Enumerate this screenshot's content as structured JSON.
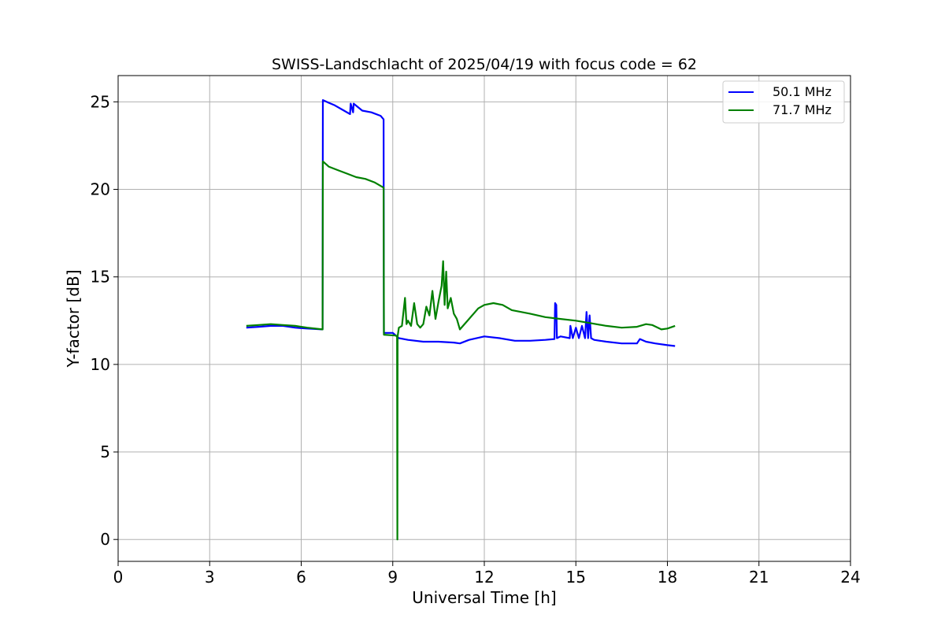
{
  "chart_data": {
    "type": "line",
    "title": "SWISS-Landschlacht of 2025/04/19 with focus code = 62",
    "xlabel": "Universal Time [h]",
    "ylabel": "Y-factor [dB]",
    "xlim": [
      0,
      24
    ],
    "ylim": [
      -1.25,
      26.5
    ],
    "xticks": [
      0,
      3,
      6,
      9,
      12,
      15,
      18,
      21,
      24
    ],
    "yticks": [
      0,
      5,
      10,
      15,
      20,
      25
    ],
    "grid": true,
    "legend_position": "top-right",
    "series": [
      {
        "name": "50.1 MHz",
        "color": "#0000ff",
        "x": [
          4.2,
          4.6,
          5.0,
          5.4,
          5.8,
          6.2,
          6.7,
          6.71,
          6.9,
          7.1,
          7.4,
          7.6,
          7.62,
          7.7,
          7.72,
          8.0,
          8.3,
          8.6,
          8.7,
          8.71,
          9.0,
          9.2,
          9.5,
          10.0,
          10.5,
          11.0,
          11.2,
          11.5,
          12.0,
          12.5,
          13.0,
          13.5,
          14.0,
          14.3,
          14.32,
          14.36,
          14.38,
          14.5,
          14.8,
          14.82,
          14.9,
          15.0,
          15.1,
          15.2,
          15.3,
          15.35,
          15.4,
          15.45,
          15.5,
          15.6,
          16.0,
          16.5,
          17.0,
          17.1,
          17.3,
          17.6,
          18.0,
          18.25
        ],
        "y": [
          12.1,
          12.15,
          12.2,
          12.2,
          12.1,
          12.05,
          12.0,
          25.1,
          24.95,
          24.8,
          24.5,
          24.3,
          24.9,
          24.4,
          24.9,
          24.5,
          24.4,
          24.2,
          24.0,
          11.8,
          11.8,
          11.5,
          11.4,
          11.3,
          11.3,
          11.25,
          11.2,
          11.4,
          11.6,
          11.5,
          11.35,
          11.35,
          11.4,
          11.45,
          13.5,
          13.4,
          11.5,
          11.6,
          11.5,
          12.2,
          11.5,
          12.1,
          11.5,
          12.2,
          11.5,
          13.0,
          11.5,
          12.8,
          11.5,
          11.4,
          11.3,
          11.2,
          11.2,
          11.45,
          11.3,
          11.2,
          11.1,
          11.05
        ]
      },
      {
        "name": "71.7 MHz",
        "color": "#008000",
        "x": [
          4.2,
          4.6,
          5.0,
          5.4,
          5.8,
          6.2,
          6.7,
          6.71,
          6.9,
          7.2,
          7.5,
          7.8,
          8.1,
          8.4,
          8.7,
          8.71,
          9.1,
          9.14,
          9.15,
          9.16,
          9.2,
          9.3,
          9.4,
          9.45,
          9.5,
          9.6,
          9.7,
          9.8,
          9.9,
          10.0,
          10.1,
          10.2,
          10.3,
          10.4,
          10.5,
          10.6,
          10.65,
          10.7,
          10.75,
          10.8,
          10.9,
          11.0,
          11.1,
          11.2,
          11.5,
          11.8,
          12.0,
          12.3,
          12.6,
          12.9,
          13.5,
          14.0,
          14.5,
          15.0,
          15.5,
          16.0,
          16.5,
          17.0,
          17.3,
          17.5,
          17.8,
          18.0,
          18.25
        ],
        "y": [
          12.2,
          12.25,
          12.3,
          12.25,
          12.2,
          12.1,
          12.0,
          21.6,
          21.3,
          21.1,
          20.9,
          20.7,
          20.6,
          20.4,
          20.1,
          11.7,
          11.65,
          11.6,
          0.0,
          11.6,
          12.1,
          12.2,
          13.8,
          12.3,
          12.5,
          12.2,
          13.5,
          12.3,
          12.1,
          12.3,
          13.3,
          12.8,
          14.2,
          12.6,
          13.6,
          14.5,
          15.9,
          13.4,
          15.3,
          13.2,
          13.8,
          12.9,
          12.6,
          12.0,
          12.6,
          13.2,
          13.4,
          13.5,
          13.4,
          13.1,
          12.9,
          12.7,
          12.6,
          12.5,
          12.35,
          12.2,
          12.1,
          12.15,
          12.3,
          12.25,
          12.0,
          12.05,
          12.2
        ]
      }
    ]
  }
}
